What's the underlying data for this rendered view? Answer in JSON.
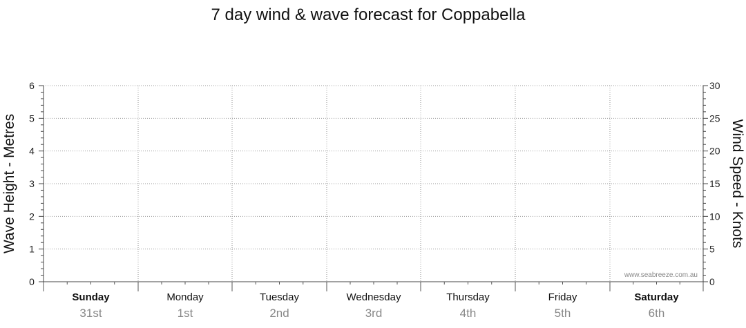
{
  "chart_data": {
    "type": "line",
    "title": "7 day wind & wave forecast for Coppabella",
    "left_axis": {
      "label": "Wave Height - Metres",
      "ylim": [
        0,
        6
      ],
      "ticks": [
        0,
        1,
        2,
        3,
        4,
        5,
        6
      ]
    },
    "right_axis": {
      "label": "Wind Speed - Knots",
      "ylim": [
        0,
        30
      ],
      "ticks": [
        0,
        5,
        10,
        15,
        20,
        25,
        30
      ]
    },
    "days": [
      {
        "name": "Sunday",
        "date": "31st",
        "bold": true
      },
      {
        "name": "Monday",
        "date": "1st",
        "bold": false
      },
      {
        "name": "Tuesday",
        "date": "2nd",
        "bold": false
      },
      {
        "name": "Wednesday",
        "date": "3rd",
        "bold": false
      },
      {
        "name": "Thursday",
        "date": "4th",
        "bold": false
      },
      {
        "name": "Friday",
        "date": "5th",
        "bold": false
      },
      {
        "name": "Saturday",
        "date": "6th",
        "bold": true
      }
    ],
    "series": [],
    "grid": true,
    "watermark": "www.seabreeze.com.au"
  }
}
